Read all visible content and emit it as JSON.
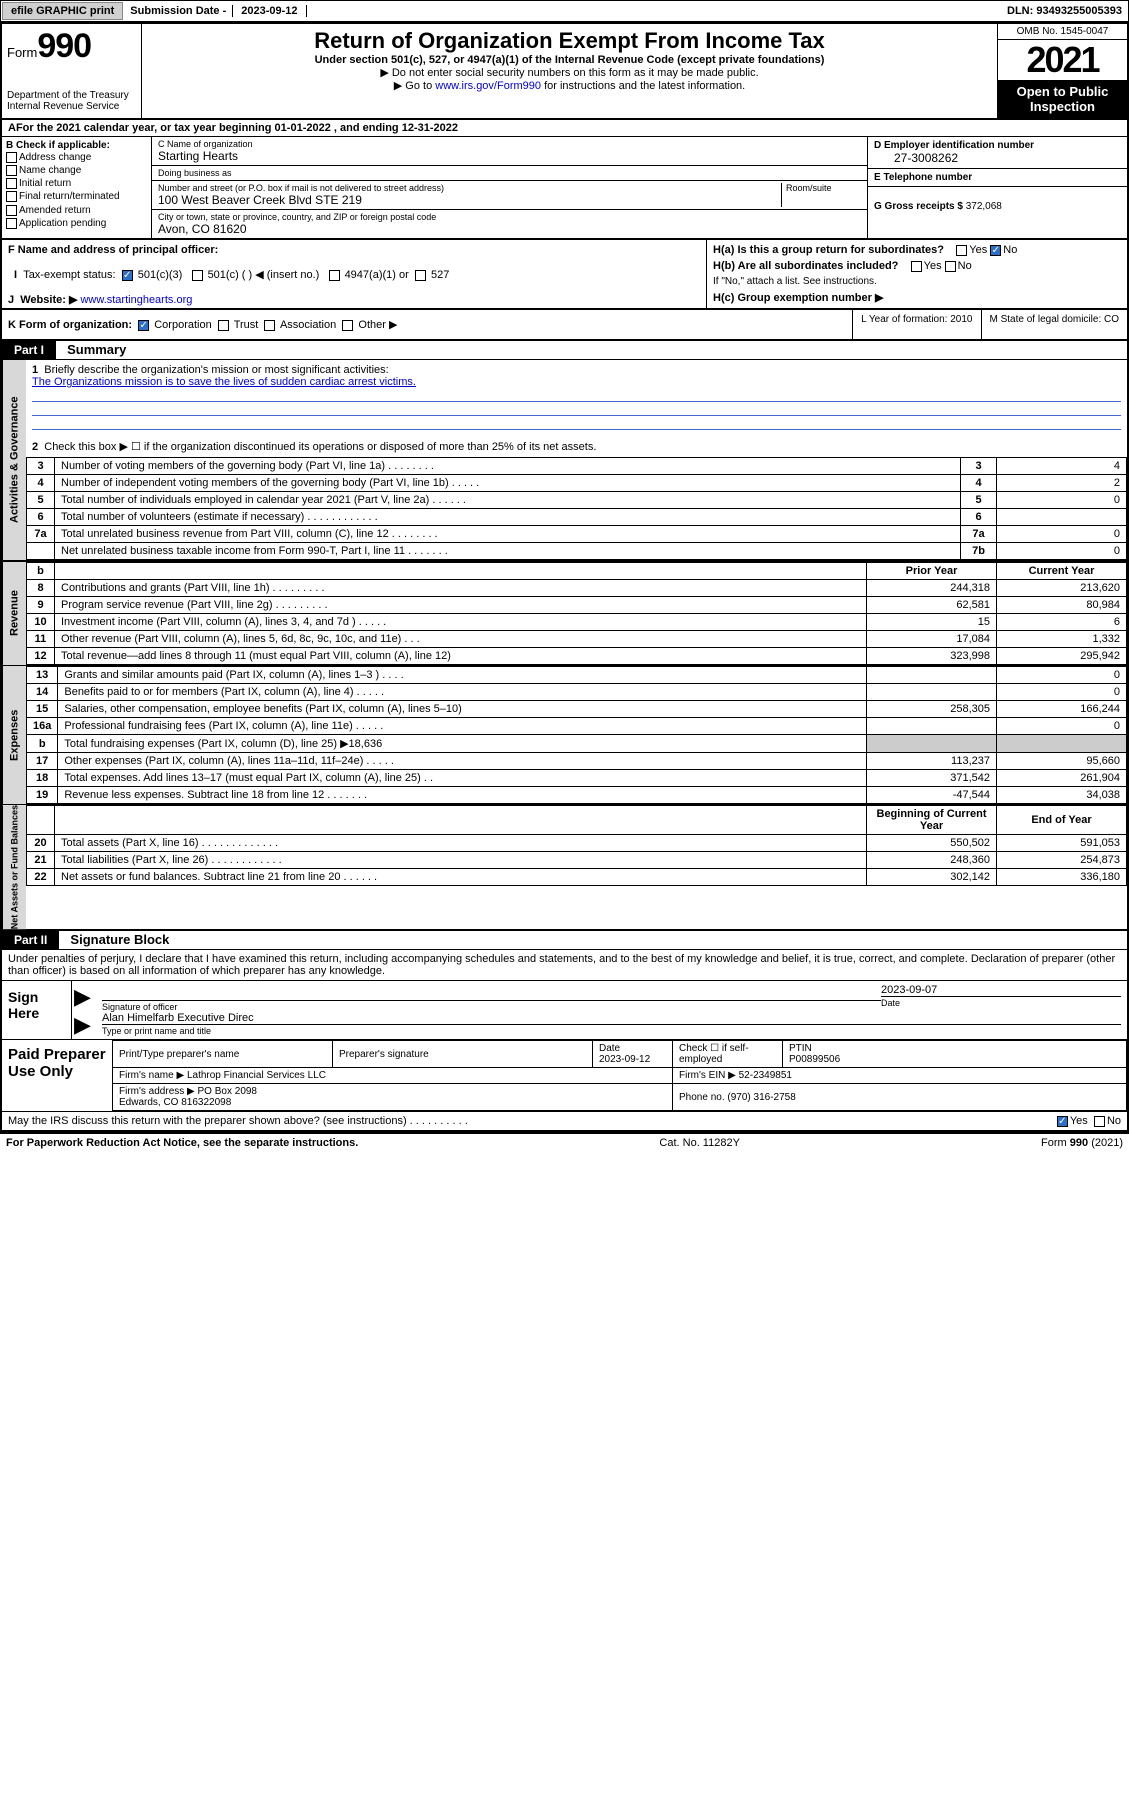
{
  "topbar": {
    "efile": "efile GRAPHIC print",
    "submission_label": "Submission Date -",
    "submission_date": "2023-09-12",
    "dln_label": "DLN:",
    "dln": "93493255005393"
  },
  "header": {
    "form_word": "Form",
    "form_num": "990",
    "dept": "Department of the Treasury\nInternal Revenue Service",
    "title": "Return of Organization Exempt From Income Tax",
    "subtitle": "Under section 501(c), 527, or 4947(a)(1) of the Internal Revenue Code (except private foundations)",
    "note1": "▶ Do not enter social security numbers on this form as it may be made public.",
    "note2_pre": "▶ Go to ",
    "note2_link": "www.irs.gov/Form990",
    "note2_post": " for instructions and the latest information.",
    "omb": "OMB No. 1545-0047",
    "year": "2021",
    "open": "Open to Public Inspection"
  },
  "A": {
    "text": "For the 2021 calendar year, or tax year beginning 01-01-2022   , and ending 12-31-2022"
  },
  "B": {
    "label": "B Check if applicable:",
    "opts": [
      "Address change",
      "Name change",
      "Initial return",
      "Final return/terminated",
      "Amended return",
      "Application pending"
    ]
  },
  "C": {
    "name_lbl": "C Name of organization",
    "name": "Starting Hearts",
    "dba_lbl": "Doing business as",
    "dba": "",
    "street_lbl": "Number and street (or P.O. box if mail is not delivered to street address)",
    "street": "100 West Beaver Creek Blvd STE 219",
    "room_lbl": "Room/suite",
    "city_lbl": "City or town, state or province, country, and ZIP or foreign postal code",
    "city": "Avon, CO  81620"
  },
  "D": {
    "lbl": "D Employer identification number",
    "val": "27-3008262"
  },
  "E": {
    "lbl": "E Telephone number",
    "val": ""
  },
  "G": {
    "lbl": "G Gross receipts $",
    "val": "372,068"
  },
  "F": {
    "lbl": "F  Name and address of principal officer:",
    "val": ""
  },
  "H": {
    "a": "H(a)  Is this a group return for subordinates?",
    "a_yes": "Yes",
    "a_no": "No",
    "b": "H(b)  Are all subordinates included?",
    "b_yes": "Yes",
    "b_no": "No",
    "b_note": "If \"No,\" attach a list. See instructions.",
    "c": "H(c)  Group exemption number ▶"
  },
  "I": {
    "lbl": "Tax-exempt status:",
    "o1": "501(c)(3)",
    "o2": "501(c) (  ) ◀ (insert no.)",
    "o3": "4947(a)(1) or",
    "o4": "527"
  },
  "J": {
    "lbl": "Website: ▶",
    "val": "www.startinghearts.org"
  },
  "K": {
    "lbl": "K Form of organization:",
    "o1": "Corporation",
    "o2": "Trust",
    "o3": "Association",
    "o4": "Other ▶",
    "L": "L Year of formation: 2010",
    "M": "M State of legal domicile: CO"
  },
  "part1": {
    "hdr": "Part I",
    "title": "Summary",
    "line1_lbl": "Briefly describe the organization's mission or most significant activities:",
    "line1_val": "The Organizations mission is to save the lives of sudden cardiac arrest victims.",
    "line2": "Check this box ▶ ☐  if the organization discontinued its operations or disposed of more than 25% of its net assets.",
    "rows_gov": [
      {
        "n": "3",
        "d": "Number of voting members of the governing body (Part VI, line 1a)   .    .    .    .    .    .    .    .",
        "b": "3",
        "v": "4"
      },
      {
        "n": "4",
        "d": "Number of independent voting members of the governing body (Part VI, line 1b)  .    .    .    .    .",
        "b": "4",
        "v": "2"
      },
      {
        "n": "5",
        "d": "Total number of individuals employed in calendar year 2021 (Part V, line 2a)   .    .    .    .    .    .",
        "b": "5",
        "v": "0"
      },
      {
        "n": "6",
        "d": "Total number of volunteers (estimate if necessary)   .    .    .    .    .    .    .    .    .    .    .    .",
        "b": "6",
        "v": ""
      },
      {
        "n": "7a",
        "d": "Total unrelated business revenue from Part VIII, column (C), line 12   .    .    .    .    .    .    .    .",
        "b": "7a",
        "v": "0"
      },
      {
        "n": "",
        "d": "Net unrelated business taxable income from Form 990-T, Part I, line 11   .    .    .    .    .    .    .",
        "b": "7b",
        "v": "0"
      }
    ],
    "col_prior": "Prior Year",
    "col_curr": "Current Year",
    "rows_rev": [
      {
        "n": "8",
        "d": "Contributions and grants (Part VIII, line 1h)   .    .    .    .    .    .    .    .    .",
        "p": "244,318",
        "c": "213,620"
      },
      {
        "n": "9",
        "d": "Program service revenue (Part VIII, line 2g)   .    .    .    .    .    .    .    .    .",
        "p": "62,581",
        "c": "80,984"
      },
      {
        "n": "10",
        "d": "Investment income (Part VIII, column (A), lines 3, 4, and 7d )   .    .    .    .    .",
        "p": "15",
        "c": "6"
      },
      {
        "n": "11",
        "d": "Other revenue (Part VIII, column (A), lines 5, 6d, 8c, 9c, 10c, and 11e)    .    .    .",
        "p": "17,084",
        "c": "1,332"
      },
      {
        "n": "12",
        "d": "Total revenue—add lines 8 through 11 (must equal Part VIII, column (A), line 12)",
        "p": "323,998",
        "c": "295,942"
      }
    ],
    "rows_exp": [
      {
        "n": "13",
        "d": "Grants and similar amounts paid (Part IX, column (A), lines 1–3 )   .    .    .    .",
        "p": "",
        "c": "0"
      },
      {
        "n": "14",
        "d": "Benefits paid to or for members (Part IX, column (A), line 4)   .    .    .    .    .",
        "p": "",
        "c": "0"
      },
      {
        "n": "15",
        "d": "Salaries, other compensation, employee benefits (Part IX, column (A), lines 5–10)",
        "p": "258,305",
        "c": "166,244"
      },
      {
        "n": "16a",
        "d": "Professional fundraising fees (Part IX, column (A), line 11e)   .    .    .    .    .",
        "p": "",
        "c": "0"
      },
      {
        "n": "b",
        "d": "Total fundraising expenses (Part IX, column (D), line 25) ▶18,636",
        "p": "shade",
        "c": "shade"
      },
      {
        "n": "17",
        "d": "Other expenses (Part IX, column (A), lines 11a–11d, 11f–24e)  .    .    .    .    .",
        "p": "113,237",
        "c": "95,660"
      },
      {
        "n": "18",
        "d": "Total expenses. Add lines 13–17 (must equal Part IX, column (A), line 25)    .    .",
        "p": "371,542",
        "c": "261,904"
      },
      {
        "n": "19",
        "d": "Revenue less expenses. Subtract line 18 from line 12   .    .    .    .    .    .    .",
        "p": "-47,544",
        "c": "34,038"
      }
    ],
    "col_beg": "Beginning of Current Year",
    "col_end": "End of Year",
    "rows_net": [
      {
        "n": "20",
        "d": "Total assets (Part X, line 16)  .    .    .    .    .    .    .    .    .    .    .    .    .",
        "p": "550,502",
        "c": "591,053"
      },
      {
        "n": "21",
        "d": "Total liabilities (Part X, line 26)   .    .    .    .    .    .    .    .    .    .    .    .",
        "p": "248,360",
        "c": "254,873"
      },
      {
        "n": "22",
        "d": "Net assets or fund balances. Subtract line 21 from line 20   .    .    .    .    .    .",
        "p": "302,142",
        "c": "336,180"
      }
    ],
    "vlabels": {
      "gov": "Activities & Governance",
      "rev": "Revenue",
      "exp": "Expenses",
      "net": "Net Assets or Fund Balances"
    }
  },
  "part2": {
    "hdr": "Part II",
    "title": "Signature Block",
    "pen": "Under penalties of perjury, I declare that I have examined this return, including accompanying schedules and statements, and to the best of my knowledge and belief, it is true, correct, and complete. Declaration of preparer (other than officer) is based on all information of which preparer has any knowledge.",
    "sign_here": "Sign Here",
    "sig_officer": "Signature of officer",
    "sig_date_lbl": "Date",
    "sig_date": "2023-09-07",
    "sig_name": "Alan Himelfarb  Executive Direc",
    "sig_name_lbl": "Type or print name and title",
    "paid": "Paid Preparer Use Only",
    "prep_name_lbl": "Print/Type preparer's name",
    "prep_sig_lbl": "Preparer's signature",
    "prep_date_lbl": "Date",
    "prep_date": "2023-09-12",
    "prep_check": "Check ☐ if self-employed",
    "ptin_lbl": "PTIN",
    "ptin": "P00899506",
    "firm_name_lbl": "Firm's name    ▶",
    "firm_name": "Lathrop Financial Services LLC",
    "firm_ein_lbl": "Firm's EIN ▶",
    "firm_ein": "52-2349851",
    "firm_addr_lbl": "Firm's address ▶",
    "firm_addr": "PO Box 2098\nEdwards, CO  816322098",
    "phone_lbl": "Phone no.",
    "phone": "(970) 316-2758",
    "discuss": "May the IRS discuss this return with the preparer shown above? (see instructions)   .    .    .    .    .    .    .    .    .    .",
    "discuss_yes": "Yes",
    "discuss_no": "No"
  },
  "footer": {
    "l": "For Paperwork Reduction Act Notice, see the separate instructions.",
    "c": "Cat. No. 11282Y",
    "r": "Form 990 (2021)"
  }
}
